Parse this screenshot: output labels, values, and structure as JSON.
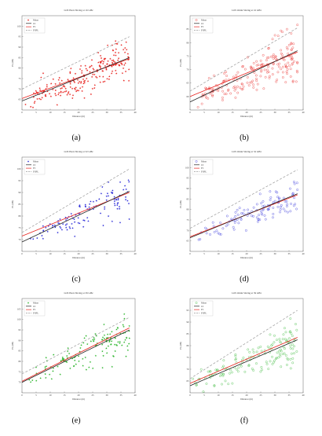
{
  "colors": {
    "ci": "#222222",
    "fi": "#e8231f",
    "fspl": "#9a9a9a",
    "axis": "#666666",
    "grid": "#d9d9d9"
  },
  "chart_data": [
    {
      "type": "scatter",
      "panel_label": "(a)",
      "title": "LOS Horn Slicing at 16 GHz",
      "xlabel": "Distance (m)",
      "ylabel": "PL (dB)",
      "xlim": [
        0,
        40
      ],
      "ylim": [
        60,
        105
      ],
      "xticks": [
        0,
        5,
        10,
        15,
        20,
        25,
        30,
        35,
        40
      ],
      "yticks": [
        65,
        70,
        75,
        80,
        85,
        90,
        95,
        100
      ],
      "grid": false,
      "legend": {
        "placement": "top-left",
        "entries": [
          "Meas",
          "CI",
          "FI",
          "FSPL"
        ]
      },
      "marker": "star",
      "marker_color": "#e8231f",
      "point_count": 230,
      "seed": 11,
      "ci": [
        64.3,
        85.0
      ],
      "fi": [
        65.5,
        84.5
      ],
      "fspl": [
        70.0,
        95.0
      ],
      "trend_mid": [
        63.5,
        86.0
      ],
      "spread": 3.5
    },
    {
      "type": "scatter",
      "panel_label": "(b)",
      "title": "LOS Omni Slicing at 16 GHz",
      "xlabel": "Distance (m)",
      "ylabel": "PL (dB)",
      "xlim": [
        0,
        40
      ],
      "ylim": [
        55,
        90
      ],
      "xticks": [
        0,
        5,
        10,
        15,
        20,
        25,
        30,
        35,
        40
      ],
      "yticks": [
        60,
        65,
        70,
        75,
        80,
        85
      ],
      "grid": false,
      "legend": {
        "placement": "top-left",
        "entries": [
          "Meas",
          "CI",
          "FI",
          "FSPL"
        ]
      },
      "marker": "circle",
      "marker_color": "#e8231f",
      "point_count": 200,
      "seed": 23,
      "ci": [
        58.0,
        77.0
      ],
      "fi": [
        60.0,
        76.5
      ],
      "fspl": [
        62.0,
        85.5
      ],
      "trend_mid": [
        59.0,
        77.0
      ],
      "spread": 3.0
    },
    {
      "type": "scatter",
      "panel_label": "(c)",
      "title": "LOS Horn Slicing at 32 GHz",
      "xlabel": "Distance (m)",
      "ylabel": "PL (dB)",
      "xlim": [
        0,
        40
      ],
      "ylim": [
        65,
        105
      ],
      "xticks": [
        0,
        5,
        10,
        15,
        20,
        25,
        30,
        35,
        40
      ],
      "yticks": [
        70,
        75,
        80,
        85,
        90,
        95,
        100
      ],
      "grid": false,
      "legend": {
        "placement": "top-left",
        "entries": [
          "Meas",
          "CI",
          "FI",
          "FSPL"
        ]
      },
      "marker": "star",
      "marker_color": "#2a2ad8",
      "point_count": 120,
      "seed": 37,
      "ci": [
        69.0,
        90.5
      ],
      "fi": [
        71.5,
        90.0
      ],
      "fspl": [
        73.0,
        100.0
      ],
      "trend_mid": [
        69.0,
        90.0
      ],
      "spread": 2.8
    },
    {
      "type": "scatter",
      "panel_label": "(d)",
      "title": "LOS Omni Slicing at 32 GHz",
      "xlabel": "Distance (m)",
      "ylabel": "PL (dB)",
      "xlim": [
        0,
        40
      ],
      "ylim": [
        60,
        105
      ],
      "xticks": [
        0,
        5,
        10,
        15,
        20,
        25,
        30,
        35,
        40
      ],
      "yticks": [
        65,
        70,
        75,
        80,
        85,
        90,
        95,
        100
      ],
      "grid": false,
      "legend": {
        "placement": "top-left",
        "entries": [
          "Meas",
          "CI",
          "FI",
          "FSPL"
        ]
      },
      "marker": "circle",
      "marker_color": "#2a2ad8",
      "point_count": 120,
      "seed": 41,
      "ci": [
        66.5,
        87.5
      ],
      "fi": [
        67.0,
        87.0
      ],
      "fspl": [
        71.0,
        99.0
      ],
      "trend_mid": [
        66.0,
        87.5
      ],
      "spread": 2.6
    },
    {
      "type": "scatter",
      "panel_label": "(e)",
      "title": "LOS Horn Slicing at 39 GHz",
      "xlabel": "Distance (m)",
      "ylabel": "PL (dB)",
      "xlim": [
        0,
        40
      ],
      "ylim": [
        65,
        110
      ],
      "xticks": [
        0,
        5,
        10,
        15,
        20,
        25,
        30,
        35,
        40
      ],
      "yticks": [
        70,
        75,
        80,
        85,
        90,
        95,
        100,
        105
      ],
      "grid": false,
      "legend": {
        "placement": "top-left",
        "entries": [
          "Meas",
          "CI",
          "FI",
          "FSPL"
        ]
      },
      "marker": "star",
      "marker_color": "#2cb52c",
      "point_count": 140,
      "seed": 53,
      "ci": [
        70.0,
        95.0
      ],
      "fi": [
        70.5,
        96.0
      ],
      "fspl": [
        74.0,
        101.0
      ],
      "trend_mid": [
        71.0,
        95.0
      ],
      "spread": 3.2
    },
    {
      "type": "scatter",
      "panel_label": "(f)",
      "title": "LOS Omni Slicing at 39 GHz",
      "xlabel": "Distance (m)",
      "ylabel": "PL (dB)",
      "xlim": [
        0,
        40
      ],
      "ylim": [
        60,
        100
      ],
      "xticks": [
        0,
        5,
        10,
        15,
        20,
        25,
        30,
        35,
        40
      ],
      "yticks": [
        65,
        70,
        75,
        80,
        85,
        90,
        95
      ],
      "grid": false,
      "legend": {
        "placement": "top-left",
        "entries": [
          "Meas",
          "CI",
          "FI",
          "FSPL"
        ]
      },
      "marker": "circle",
      "marker_color": "#2cb52c",
      "point_count": 150,
      "seed": 67,
      "ci": [
        63.0,
        82.5
      ],
      "fi": [
        64.0,
        83.5
      ],
      "fspl": [
        66.0,
        95.0
      ],
      "trend_mid": [
        64.0,
        82.0
      ],
      "spread": 3.0
    }
  ]
}
